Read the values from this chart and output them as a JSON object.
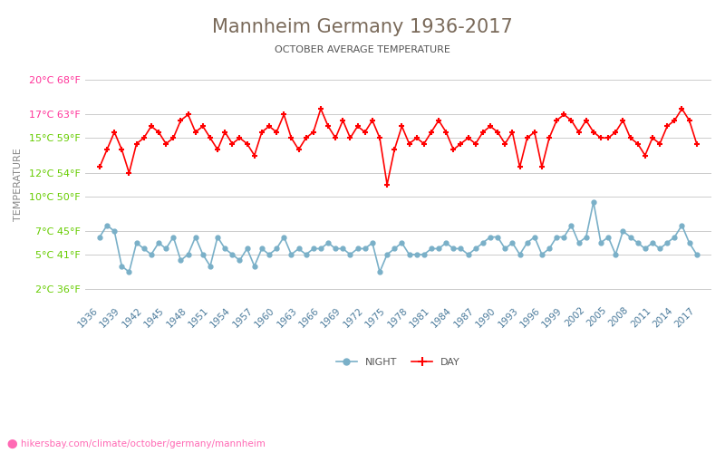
{
  "title": "Mannheim Germany 1936-2017",
  "subtitle": "OCTOBER AVERAGE TEMPERATURE",
  "ylabel": "TEMPERATURE",
  "watermark": "hikersbay.com/climate/october/germany/mannheim",
  "title_color": "#7a6a5a",
  "subtitle_color": "#555555",
  "background_color": "#ffffff",
  "grid_color": "#cccccc",
  "years": [
    1936,
    1937,
    1938,
    1939,
    1940,
    1941,
    1942,
    1943,
    1944,
    1945,
    1946,
    1947,
    1948,
    1949,
    1950,
    1951,
    1952,
    1953,
    1954,
    1955,
    1956,
    1957,
    1958,
    1959,
    1960,
    1961,
    1962,
    1963,
    1964,
    1965,
    1966,
    1967,
    1968,
    1969,
    1970,
    1971,
    1972,
    1973,
    1974,
    1975,
    1976,
    1977,
    1978,
    1979,
    1980,
    1981,
    1982,
    1983,
    1984,
    1985,
    1986,
    1987,
    1988,
    1989,
    1990,
    1991,
    1992,
    1993,
    1994,
    1995,
    1996,
    1997,
    1998,
    1999,
    2000,
    2001,
    2002,
    2003,
    2004,
    2005,
    2006,
    2007,
    2008,
    2009,
    2010,
    2011,
    2012,
    2013,
    2014,
    2015,
    2016,
    2017
  ],
  "day_temps": [
    12.5,
    14.0,
    15.5,
    14.0,
    12.0,
    14.5,
    15.0,
    16.0,
    15.5,
    14.5,
    15.0,
    16.5,
    17.0,
    15.5,
    16.0,
    15.0,
    14.0,
    15.5,
    14.5,
    15.0,
    14.5,
    13.5,
    15.5,
    16.0,
    15.5,
    17.0,
    15.0,
    14.0,
    15.0,
    15.5,
    17.5,
    16.0,
    15.0,
    16.5,
    15.0,
    16.0,
    15.5,
    16.5,
    15.0,
    11.0,
    14.0,
    16.0,
    14.5,
    15.0,
    14.5,
    15.5,
    16.5,
    15.5,
    14.0,
    14.5,
    15.0,
    14.5,
    15.5,
    16.0,
    15.5,
    14.5,
    15.5,
    12.5,
    15.0,
    15.5,
    12.5,
    15.0,
    16.5,
    17.0,
    16.5,
    15.5,
    16.5,
    15.5,
    15.0,
    15.0,
    15.5,
    16.5,
    15.0,
    14.5,
    13.5,
    15.0,
    14.5,
    16.0,
    16.5,
    17.5,
    16.5,
    14.5
  ],
  "night_temps": [
    6.5,
    7.5,
    7.0,
    4.0,
    3.5,
    6.0,
    5.5,
    5.0,
    6.0,
    5.5,
    6.5,
    4.5,
    5.0,
    6.5,
    5.0,
    4.0,
    6.5,
    5.5,
    5.0,
    4.5,
    5.5,
    4.0,
    5.5,
    5.0,
    5.5,
    6.5,
    5.0,
    5.5,
    5.0,
    5.5,
    5.5,
    6.0,
    5.5,
    5.5,
    5.0,
    5.5,
    5.5,
    6.0,
    3.5,
    5.0,
    5.5,
    6.0,
    5.0,
    5.0,
    5.0,
    5.5,
    5.5,
    6.0,
    5.5,
    5.5,
    5.0,
    5.5,
    6.0,
    6.5,
    6.5,
    5.5,
    6.0,
    5.0,
    6.0,
    6.5,
    5.0,
    5.5,
    6.5,
    6.5,
    7.5,
    6.0,
    6.5,
    9.5,
    6.0,
    6.5,
    5.0,
    7.0,
    6.5,
    6.0,
    5.5,
    6.0,
    5.5,
    6.0,
    6.5,
    7.5,
    6.0,
    5.0
  ],
  "yticks_celsius": [
    2,
    5,
    7,
    10,
    12,
    15,
    17,
    20
  ],
  "yticks_fahrenheit": [
    36,
    41,
    45,
    50,
    54,
    59,
    63,
    68
  ],
  "ytick_colors": [
    "#66cc00",
    "#66cc00",
    "#66cc00",
    "#66cc00",
    "#66cc00",
    "#66cc00",
    "#ff3399",
    "#ff3399"
  ],
  "day_color": "#ff0000",
  "night_color": "#7ab0c8",
  "xtick_years": [
    1936,
    1939,
    1942,
    1945,
    1948,
    1951,
    1954,
    1957,
    1960,
    1963,
    1966,
    1969,
    1972,
    1975,
    1978,
    1981,
    1984,
    1987,
    1990,
    1993,
    1996,
    1999,
    2002,
    2005,
    2008,
    2011,
    2014,
    2017
  ],
  "ylim": [
    1,
    21
  ],
  "xlim": [
    1934,
    2019
  ]
}
